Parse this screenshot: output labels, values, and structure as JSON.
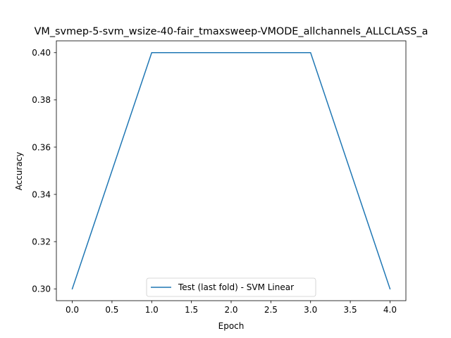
{
  "chart_data": {
    "type": "line",
    "title": "VM_svmep-5-svm_wsize-40-fair_tmaxsweep-VMODE_allchannels_ALLCLASS_a",
    "xlabel": "Epoch",
    "ylabel": "Accuracy",
    "xlim": [
      -0.2,
      4.2
    ],
    "ylim": [
      0.295,
      0.405
    ],
    "xticks": [
      0.0,
      0.5,
      1.0,
      1.5,
      2.0,
      2.5,
      3.0,
      3.5,
      4.0
    ],
    "xtick_labels": [
      "0.0",
      "0.5",
      "1.0",
      "1.5",
      "2.0",
      "2.5",
      "3.0",
      "3.5",
      "4.0"
    ],
    "yticks": [
      0.3,
      0.32,
      0.34,
      0.36,
      0.38,
      0.4
    ],
    "ytick_labels": [
      "0.30",
      "0.32",
      "0.34",
      "0.36",
      "0.38",
      "0.40"
    ],
    "grid": false,
    "legend_position": "bottom-center",
    "series": [
      {
        "name": "Test (last fold) - SVM Linear",
        "color": "#1f77b4",
        "x": [
          0,
          1,
          2,
          3,
          4
        ],
        "y": [
          0.3,
          0.4,
          0.4,
          0.4,
          0.3
        ]
      }
    ]
  }
}
